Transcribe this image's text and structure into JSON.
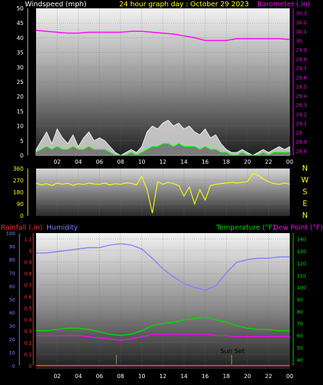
{
  "colors": {
    "windspeed": "#ffffff",
    "gust_fill": "#d8d8d8",
    "wind_avg": "#00ff00",
    "barometer": "#ff00ff",
    "direction": "#ffff00",
    "rainfall": "#ff3333",
    "humidity": "#8080ff",
    "temperature": "#00dd00",
    "dewpoint": "#ff00ff",
    "title": "#ffff00",
    "axis_text": "#ffffff",
    "sunset": "#ffff99"
  },
  "chart_data": [
    {
      "type": "area",
      "panel": "wind_barometer",
      "title": "24 hour graph day : October 29 2023",
      "left_label": "Windspeed (mph)",
      "right_label": "Barometer (.in)",
      "x_tick_labels": [
        "02",
        "04",
        "06",
        "08",
        "10",
        "12",
        "14",
        "16",
        "18",
        "20",
        "22",
        "00"
      ],
      "x_range_hours": [
        0,
        24
      ],
      "y_left_ticks": [
        "0",
        "5",
        "10",
        "15",
        "20",
        "25",
        "30",
        "35",
        "40",
        "45",
        "50"
      ],
      "y_left_range": [
        0,
        50
      ],
      "y_right_ticks": [
        "28.8",
        "28.9",
        "29",
        "29.1",
        "29.2",
        "29.3",
        "29.4",
        "29.5",
        "29.6",
        "29.7",
        "29.8",
        "29.9",
        "30",
        "30.1",
        "30.2",
        "30.3"
      ],
      "y_right_range": [
        28.75,
        30.35
      ],
      "grid": true,
      "series": [
        {
          "name": "Barometer",
          "axis": "right",
          "x": [
            0,
            1,
            2,
            3,
            4,
            5,
            6,
            7,
            8,
            9,
            10,
            11,
            12,
            13,
            14,
            15,
            16,
            17,
            18,
            19,
            20,
            21,
            22,
            23,
            24
          ],
          "values": [
            30.11,
            30.1,
            30.09,
            30.08,
            30.08,
            30.09,
            30.09,
            30.09,
            30.09,
            30.1,
            30.1,
            30.09,
            30.08,
            30.07,
            30.05,
            30.03,
            30.0,
            30.0,
            30.0,
            30.02,
            30.02,
            30.02,
            30.02,
            30.02,
            30.01
          ]
        },
        {
          "name": "Wind Gust",
          "axis": "left",
          "x": [
            0,
            0.5,
            1,
            1.5,
            2,
            2.5,
            3,
            3.5,
            4,
            4.5,
            5,
            5.5,
            6,
            6.5,
            7,
            7.5,
            8,
            8.5,
            9,
            9.5,
            10,
            10.5,
            11,
            11.5,
            12,
            12.5,
            13,
            13.5,
            14,
            14.5,
            15,
            15.5,
            16,
            16.5,
            17,
            17.5,
            18,
            18.5,
            19,
            19.5,
            20,
            20.5,
            21,
            21.5,
            22,
            22.5,
            23,
            23.5,
            24
          ],
          "values": [
            2,
            5,
            8,
            4,
            9,
            6,
            4,
            7,
            3,
            6,
            8,
            5,
            6,
            5,
            3,
            1,
            0,
            1,
            2,
            1,
            3,
            8,
            10,
            9,
            11,
            12,
            10,
            11,
            9,
            10,
            8,
            7,
            9,
            6,
            7,
            4,
            2,
            1,
            1,
            2,
            1,
            0,
            1,
            2,
            1,
            2,
            3,
            2,
            3
          ]
        },
        {
          "name": "Wind Speed",
          "axis": "left",
          "x": [
            0,
            0.5,
            1,
            1.5,
            2,
            2.5,
            3,
            3.5,
            4,
            4.5,
            5,
            5.5,
            6,
            6.5,
            7,
            7.5,
            8,
            8.5,
            9,
            9.5,
            10,
            10.5,
            11,
            11.5,
            12,
            12.5,
            13,
            13.5,
            14,
            14.5,
            15,
            15.5,
            16,
            16.5,
            17,
            17.5,
            18,
            18.5,
            19,
            19.5,
            20,
            20.5,
            21,
            21.5,
            22,
            22.5,
            23,
            23.5,
            24
          ],
          "values": [
            1,
            2,
            3,
            2,
            3,
            2,
            2,
            3,
            2,
            2,
            3,
            2,
            2,
            2,
            1,
            0,
            0,
            0,
            1,
            0,
            1,
            2,
            3,
            3,
            4,
            4,
            3,
            4,
            3,
            3,
            3,
            2,
            3,
            2,
            2,
            1,
            1,
            0,
            0,
            1,
            0,
            0,
            0,
            1,
            0,
            1,
            1,
            1,
            1
          ]
        }
      ]
    },
    {
      "type": "line",
      "panel": "direction",
      "y_left_ticks": [
        "0",
        "90",
        "180",
        "270",
        "360"
      ],
      "y_range": [
        0,
        360
      ],
      "compass_labels": [
        "N",
        "W",
        "S",
        "E",
        "N"
      ],
      "grid": true,
      "series": [
        {
          "name": "Wind Direction",
          "x": [
            0,
            0.5,
            1,
            1.5,
            2,
            2.5,
            3,
            3.5,
            4,
            4.5,
            5,
            5.5,
            6,
            6.5,
            7,
            7.5,
            8,
            8.5,
            9,
            9.5,
            10,
            10.5,
            11,
            11.5,
            12,
            12.5,
            13,
            13.5,
            14,
            14.5,
            15,
            15.5,
            16,
            16.5,
            17,
            17.5,
            18,
            18.5,
            19,
            19.5,
            20,
            20.5,
            21,
            21.5,
            22,
            22.5,
            23,
            23.5,
            24
          ],
          "values": [
            250,
            235,
            245,
            230,
            250,
            240,
            248,
            232,
            245,
            238,
            250,
            242,
            240,
            250,
            235,
            245,
            240,
            250,
            248,
            235,
            300,
            200,
            20,
            260,
            240,
            255,
            245,
            230,
            150,
            220,
            90,
            200,
            120,
            230,
            240,
            245,
            250,
            255,
            250,
            255,
            260,
            320,
            310,
            280,
            260,
            245,
            240,
            250,
            240
          ]
        }
      ]
    },
    {
      "type": "line",
      "panel": "temp_humidity_rain",
      "left_labels": [
        "Rainfall (.in)",
        "Humidity"
      ],
      "right_labels": [
        "Temperature (°F)",
        "Dew Point (°F)"
      ],
      "annotation": "Sun Set",
      "y_humidity_ticks": [
        "0",
        "10",
        "20",
        "30",
        "40",
        "50",
        "60",
        "70",
        "80",
        "90",
        "100"
      ],
      "y_humidity_range": [
        0,
        100
      ],
      "y_rain_ticks": [
        "0",
        "0.1",
        "0.2",
        "0.3",
        "0.4",
        "0.5",
        "0.6",
        "0.7",
        "0.8",
        "0.9",
        "1",
        "1.1"
      ],
      "y_rain_range": [
        0,
        1.15
      ],
      "y_temp_ticks": [
        "40",
        "50",
        "60",
        "70",
        "80",
        "90",
        "100",
        "110",
        "120",
        "130",
        "140"
      ],
      "y_temp_range": [
        35,
        145
      ],
      "grid": true,
      "series": [
        {
          "name": "Humidity",
          "axis": "humidity",
          "x": [
            0,
            1,
            2,
            3,
            4,
            5,
            6,
            7,
            8,
            9,
            10,
            11,
            12,
            13,
            14,
            15,
            16,
            17,
            18,
            19,
            20,
            21,
            22,
            23,
            24
          ],
          "values": [
            85,
            85,
            86,
            87,
            88,
            89,
            89,
            91,
            92,
            91,
            88,
            81,
            73,
            67,
            62,
            59,
            57,
            60,
            70,
            78,
            80,
            81,
            81,
            82,
            82
          ]
        },
        {
          "name": "Temperature",
          "axis": "temp",
          "x": [
            0,
            1,
            2,
            3,
            4,
            5,
            6,
            7,
            8,
            9,
            10,
            11,
            12,
            13,
            14,
            15,
            16,
            17,
            18,
            19,
            20,
            21,
            22,
            23,
            24
          ],
          "values": [
            64,
            64,
            65,
            66,
            66,
            65,
            63,
            61,
            60,
            61,
            64,
            68,
            70,
            71,
            73,
            74,
            75,
            73,
            71,
            68,
            66,
            65,
            65,
            64,
            64
          ]
        },
        {
          "name": "Dew Point",
          "axis": "temp",
          "x": [
            0,
            1,
            2,
            3,
            4,
            5,
            6,
            7,
            8,
            9,
            10,
            11,
            12,
            13,
            14,
            15,
            16,
            17,
            18,
            19,
            20,
            21,
            22,
            23,
            24
          ],
          "values": [
            60,
            60,
            60,
            60,
            60,
            59,
            58,
            57,
            56,
            57,
            59,
            61,
            61,
            61,
            61,
            61,
            61,
            60,
            60,
            59,
            59,
            59,
            59,
            59,
            59
          ]
        },
        {
          "name": "Rainfall",
          "axis": "rain",
          "x": [
            0,
            24
          ],
          "values": [
            0,
            0
          ]
        }
      ],
      "sunrise_hour": 7.6,
      "sunset_hour": 18.5
    }
  ]
}
